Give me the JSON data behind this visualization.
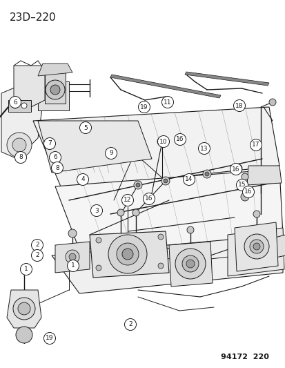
{
  "title": "23D–220",
  "footer": "94172  220",
  "bg_color": "#ffffff",
  "title_fontsize": 11,
  "footer_fontsize": 8,
  "line_color": "#1a1a1a",
  "callout_fontsize": 6.5,
  "callout_r": 8.5,
  "callouts": [
    [
      38,
      390,
      "1"
    ],
    [
      106,
      385,
      "1"
    ],
    [
      54,
      355,
      "2"
    ],
    [
      54,
      370,
      "2"
    ],
    [
      189,
      470,
      "2"
    ],
    [
      140,
      305,
      "3"
    ],
    [
      120,
      260,
      "4"
    ],
    [
      124,
      185,
      "5"
    ],
    [
      22,
      148,
      "6"
    ],
    [
      80,
      228,
      "6"
    ],
    [
      72,
      208,
      "7"
    ],
    [
      30,
      228,
      "8"
    ],
    [
      83,
      243,
      "8"
    ],
    [
      161,
      222,
      "9"
    ],
    [
      237,
      205,
      "10"
    ],
    [
      243,
      148,
      "11"
    ],
    [
      185,
      290,
      "12"
    ],
    [
      296,
      215,
      "13"
    ],
    [
      274,
      260,
      "14"
    ],
    [
      351,
      268,
      "15"
    ],
    [
      261,
      202,
      "16"
    ],
    [
      216,
      288,
      "16"
    ],
    [
      342,
      245,
      "16"
    ],
    [
      360,
      278,
      "16"
    ],
    [
      371,
      210,
      "17"
    ],
    [
      347,
      153,
      "18"
    ],
    [
      209,
      155,
      "19"
    ],
    [
      72,
      490,
      "19"
    ]
  ]
}
